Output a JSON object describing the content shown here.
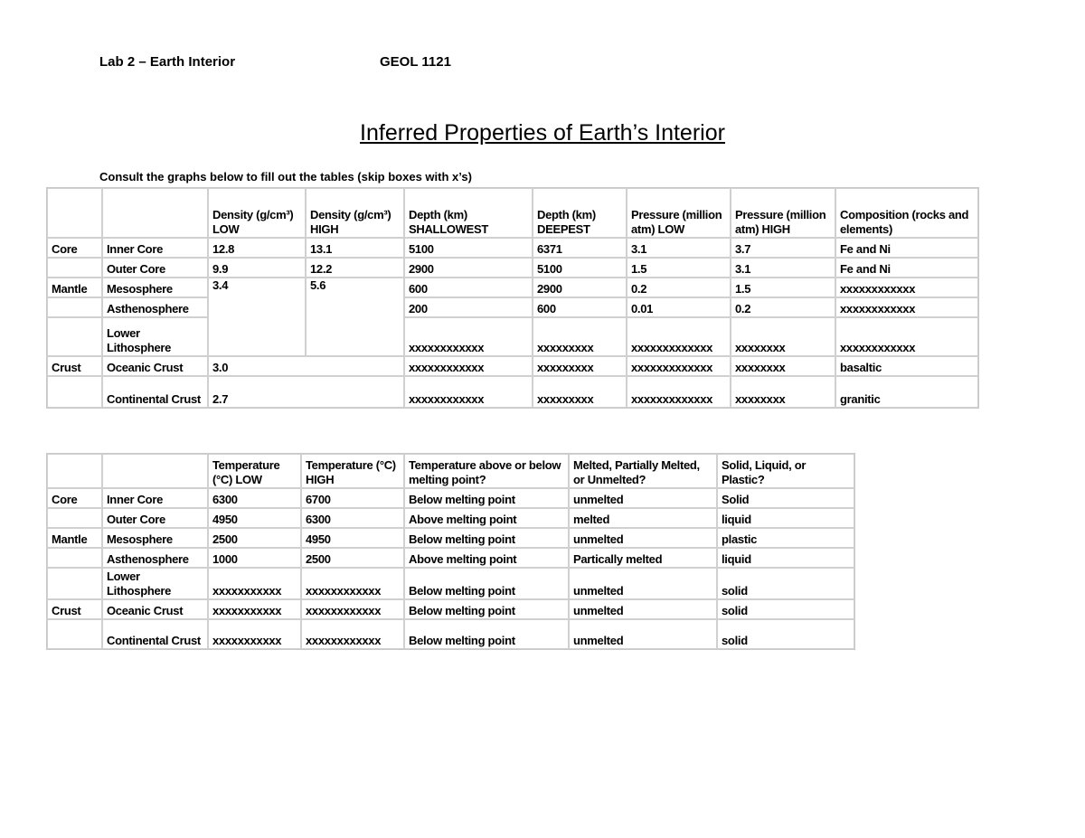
{
  "header": {
    "left": "Lab 2 – Earth Interior",
    "center": "GEOL 1121"
  },
  "title": "Inferred Properties of Earth’s Interior",
  "instructions": "Consult the graphs below to fill out the tables (skip boxes with x’s)",
  "table1": {
    "headers": [
      "",
      "",
      "Density (g/cm³) LOW",
      "Density (g/cm³) HIGH",
      "Depth (km) SHALLOWEST",
      "Depth (km) DEEPEST",
      "Pressure (million atm) LOW",
      "Pressure (million atm) HIGH",
      "Composition (rocks and elements)"
    ],
    "rows": [
      {
        "group": "Core",
        "layer": "Inner Core",
        "dlow": "12.8",
        "dhigh": "13.1",
        "shallow": "5100",
        "deep": "6371",
        "plow": "3.1",
        "phigh": "3.7",
        "comp": "Fe and Ni"
      },
      {
        "group": "",
        "layer": "Outer Core",
        "dlow": "9.9",
        "dhigh": "12.2",
        "shallow": "2900",
        "deep": "5100",
        "plow": "1.5",
        "phigh": "3.1",
        "comp": "Fe and Ni"
      },
      {
        "group": "Mantle",
        "layer": "Mesosphere",
        "dlow": "3.4",
        "dhigh": "5.6",
        "shallow": "600",
        "deep": "2900",
        "plow": "0.2",
        "phigh": "1.5",
        "comp": "xxxxxxxxxxxx"
      },
      {
        "group": "",
        "layer": "Asthenosphere",
        "shallow": "200",
        "deep": "600",
        "plow": "0.01",
        "phigh": "0.2",
        "comp": "xxxxxxxxxxxx"
      },
      {
        "group": "",
        "layer": "Lower Lithosphere",
        "shallow": "xxxxxxxxxxxx",
        "deep": "xxxxxxxxx",
        "plow": "xxxxxxxxxxxxx",
        "phigh": "xxxxxxxx",
        "comp": "xxxxxxxxxxxx"
      },
      {
        "group": "Crust",
        "layer": "Oceanic Crust",
        "density": "3.0",
        "shallow": "xxxxxxxxxxxx",
        "deep": "xxxxxxxxx",
        "plow": "xxxxxxxxxxxxx",
        "phigh": "xxxxxxxx",
        "comp": "basaltic"
      },
      {
        "group": "",
        "layer": "Continental Crust",
        "density": "2.7",
        "shallow": "xxxxxxxxxxxx",
        "deep": "xxxxxxxxx",
        "plow": "xxxxxxxxxxxxx",
        "phigh": "xxxxxxxx",
        "comp": "granitic"
      }
    ]
  },
  "table2": {
    "headers": [
      "",
      "",
      "Temperature (°C) LOW",
      "Temperature (°C) HIGH",
      "Temperature above or below melting point?",
      "Melted, Partially Melted, or Unmelted?",
      "Solid, Liquid, or Plastic?"
    ],
    "rows": [
      {
        "group": "Core",
        "layer": "Inner Core",
        "tlow": "6300",
        "thigh": "6700",
        "melt": "Below melting point",
        "state": "unmelted",
        "phase": "Solid"
      },
      {
        "group": "",
        "layer": "Outer Core",
        "tlow": "4950",
        "thigh": "6300",
        "melt": "Above melting point",
        "state": "melted",
        "phase": "liquid"
      },
      {
        "group": "Mantle",
        "layer": "Mesosphere",
        "tlow": "2500",
        "thigh": "4950",
        "melt": "Below melting point",
        "state": "unmelted",
        "phase": "plastic"
      },
      {
        "group": "",
        "layer": "Asthenosphere",
        "tlow": "1000",
        "thigh": "2500",
        "melt": "Above melting point",
        "state": "Partically melted",
        "phase": "liquid"
      },
      {
        "group": "",
        "layer": "Lower Lithosphere",
        "tlow": "xxxxxxxxxxx",
        "thigh": "xxxxxxxxxxxx",
        "melt": "Below melting point",
        "state": "unmelted",
        "phase": "solid"
      },
      {
        "group": "Crust",
        "layer": "Oceanic Crust",
        "tlow": "xxxxxxxxxxx",
        "thigh": "xxxxxxxxxxxx",
        "melt": "Below melting point",
        "state": "unmelted",
        "phase": "solid"
      },
      {
        "group": "",
        "layer": "Continental Crust",
        "tlow": "xxxxxxxxxxx",
        "thigh": "xxxxxxxxxxxx",
        "melt": "Below melting point",
        "state": "unmelted",
        "phase": "solid"
      }
    ]
  }
}
